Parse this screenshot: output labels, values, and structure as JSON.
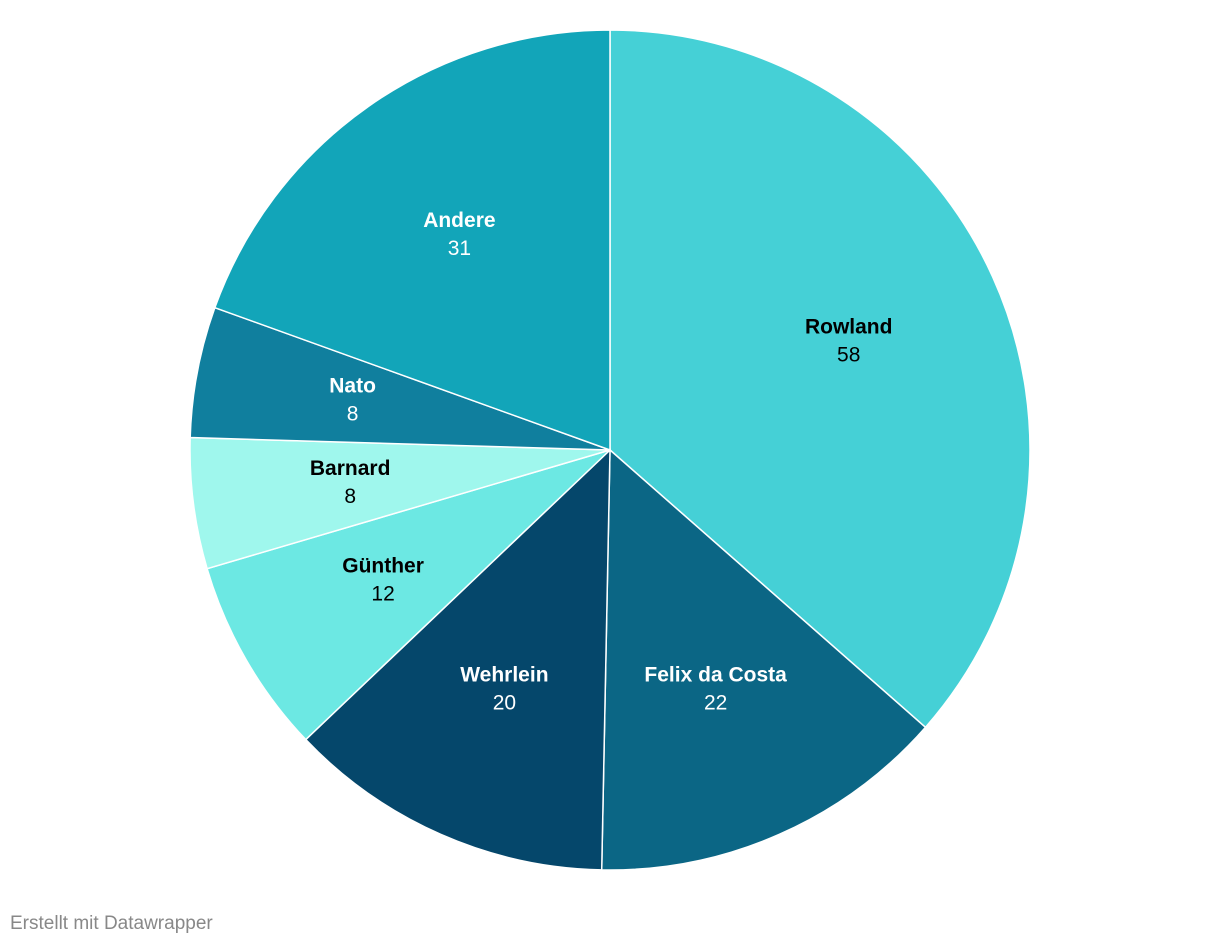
{
  "chart_data": {
    "type": "pie",
    "categories": [
      "Rowland",
      "Felix da Costa",
      "Wehrlein",
      "Günther",
      "Barnard",
      "Nato",
      "Andere"
    ],
    "values": [
      58,
      22,
      20,
      12,
      8,
      8,
      31
    ],
    "colors": [
      "#45d0d6",
      "#0b6685",
      "#05476b",
      "#6ce8e3",
      "#9ff7ed",
      "#107f9e",
      "#12a5b9"
    ]
  },
  "footer": "Erstellt mit Datawrapper"
}
